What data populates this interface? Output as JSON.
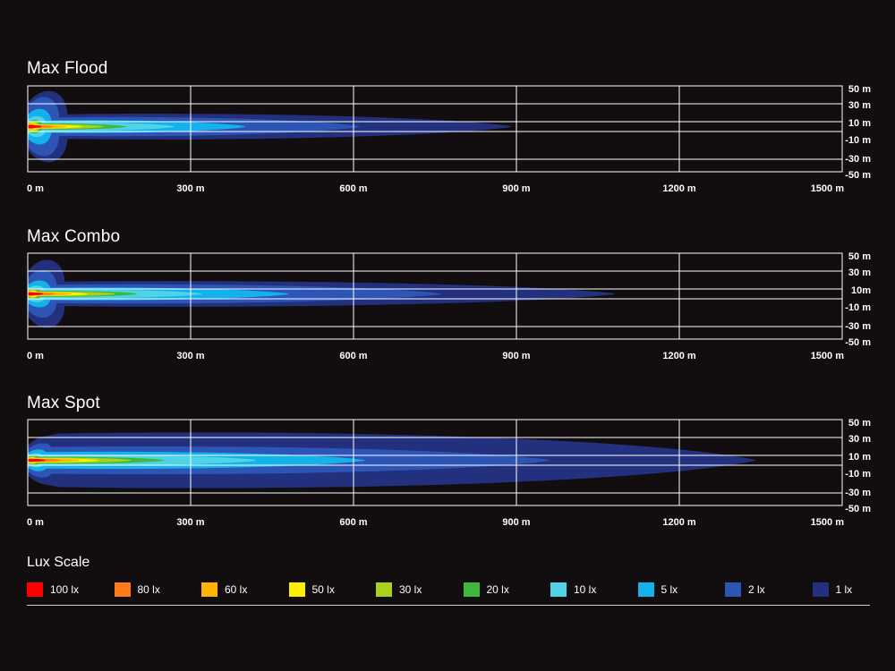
{
  "chart_data": [
    {
      "type": "heatmap",
      "title": "Max Flood",
      "x_ticks": [
        "0 m",
        "300 m",
        "600 m",
        "900 m",
        "1200 m",
        "1500 m"
      ],
      "y_ticks": [
        "50 m",
        "30 m",
        "10 m",
        "-10 m",
        "-30 m",
        "-50 m"
      ],
      "xlim": [
        0,
        1500
      ],
      "ylim": [
        -50,
        50
      ],
      "grid": true,
      "contours": [
        {
          "lux": 1,
          "reach_m": 890,
          "half_width_m": 12,
          "near_half_width_m": 48,
          "near_depth_m": 70
        },
        {
          "lux": 2,
          "reach_m": 610,
          "half_width_m": 9,
          "near_half_width_m": 40,
          "near_depth_m": 55
        },
        {
          "lux": 5,
          "reach_m": 400,
          "half_width_m": 6,
          "near_half_width_m": 24,
          "near_depth_m": 40
        },
        {
          "lux": 10,
          "reach_m": 270,
          "half_width_m": 4,
          "near_half_width_m": 14,
          "near_depth_m": 30
        },
        {
          "lux": 20,
          "reach_m": 180,
          "half_width_m": 2.8,
          "near_half_width_m": 9,
          "near_depth_m": 22
        },
        {
          "lux": 30,
          "reach_m": 140,
          "half_width_m": 2.2,
          "near_half_width_m": 7,
          "near_depth_m": 18
        },
        {
          "lux": 50,
          "reach_m": 100,
          "half_width_m": 1.7,
          "near_half_width_m": 5,
          "near_depth_m": 14
        },
        {
          "lux": 60,
          "reach_m": 70,
          "half_width_m": 1.4,
          "near_half_width_m": 4,
          "near_depth_m": 11
        },
        {
          "lux": 80,
          "reach_m": 45,
          "half_width_m": 1.1,
          "near_half_width_m": 3,
          "near_depth_m": 9
        },
        {
          "lux": 100,
          "reach_m": 25,
          "half_width_m": 0.8,
          "near_half_width_m": 2,
          "near_depth_m": 7
        }
      ]
    },
    {
      "type": "heatmap",
      "title": "Max Combo",
      "x_ticks": [
        "0 m",
        "300 m",
        "600 m",
        "900 m",
        "1200 m",
        "1500 m"
      ],
      "y_ticks": [
        "50 m",
        "30 m",
        "10m",
        "-10 m",
        "-30 m",
        "-50 m"
      ],
      "xlim": [
        0,
        1500
      ],
      "ylim": [
        -50,
        50
      ],
      "grid": true,
      "contours": [
        {
          "lux": 1,
          "reach_m": 1080,
          "half_width_m": 12,
          "near_half_width_m": 46,
          "near_depth_m": 65
        },
        {
          "lux": 2,
          "reach_m": 760,
          "half_width_m": 9,
          "near_half_width_m": 32,
          "near_depth_m": 50
        },
        {
          "lux": 5,
          "reach_m": 480,
          "half_width_m": 6,
          "near_half_width_m": 18,
          "near_depth_m": 38
        },
        {
          "lux": 10,
          "reach_m": 320,
          "half_width_m": 4,
          "near_half_width_m": 11,
          "near_depth_m": 28
        },
        {
          "lux": 20,
          "reach_m": 200,
          "half_width_m": 2.8,
          "near_half_width_m": 7,
          "near_depth_m": 20
        },
        {
          "lux": 30,
          "reach_m": 160,
          "half_width_m": 2.2,
          "near_half_width_m": 5.5,
          "near_depth_m": 16
        },
        {
          "lux": 50,
          "reach_m": 110,
          "half_width_m": 1.7,
          "near_half_width_m": 4.5,
          "near_depth_m": 13
        },
        {
          "lux": 60,
          "reach_m": 80,
          "half_width_m": 1.4,
          "near_half_width_m": 3.5,
          "near_depth_m": 10
        },
        {
          "lux": 80,
          "reach_m": 50,
          "half_width_m": 1.1,
          "near_half_width_m": 2.5,
          "near_depth_m": 8
        },
        {
          "lux": 100,
          "reach_m": 28,
          "half_width_m": 0.8,
          "near_half_width_m": 1.8,
          "near_depth_m": 6
        }
      ]
    },
    {
      "type": "heatmap",
      "title": "Max Spot",
      "x_ticks": [
        "0 m",
        "300 m",
        "600 m",
        "900 m",
        "1200 m",
        "1500 m"
      ],
      "y_ticks": [
        "50 m",
        "30 m",
        "10 m",
        "-10 m",
        "-30 m",
        "-50 m"
      ],
      "xlim": [
        0,
        1500
      ],
      "ylim": [
        -50,
        50
      ],
      "grid": true,
      "contours": [
        {
          "lux": 1,
          "reach_m": 1340,
          "half_width_m": 26,
          "near_half_width_m": 30,
          "near_depth_m": 50
        },
        {
          "lux": 2,
          "reach_m": 960,
          "half_width_m": 13,
          "near_half_width_m": 22,
          "near_depth_m": 40
        },
        {
          "lux": 5,
          "reach_m": 620,
          "half_width_m": 8,
          "near_half_width_m": 14,
          "near_depth_m": 30
        },
        {
          "lux": 10,
          "reach_m": 420,
          "half_width_m": 5,
          "near_half_width_m": 9,
          "near_depth_m": 24
        },
        {
          "lux": 20,
          "reach_m": 250,
          "half_width_m": 3.2,
          "near_half_width_m": 6,
          "near_depth_m": 18
        },
        {
          "lux": 30,
          "reach_m": 190,
          "half_width_m": 2.5,
          "near_half_width_m": 5,
          "near_depth_m": 14
        },
        {
          "lux": 50,
          "reach_m": 130,
          "half_width_m": 1.9,
          "near_half_width_m": 4,
          "near_depth_m": 11
        },
        {
          "lux": 60,
          "reach_m": 95,
          "half_width_m": 1.5,
          "near_half_width_m": 3,
          "near_depth_m": 9
        },
        {
          "lux": 80,
          "reach_m": 60,
          "half_width_m": 1.2,
          "near_half_width_m": 2.2,
          "near_depth_m": 7
        },
        {
          "lux": 100,
          "reach_m": 32,
          "half_width_m": 0.9,
          "near_half_width_m": 1.6,
          "near_depth_m": 5
        }
      ]
    }
  ],
  "legend": {
    "title": "Lux Scale",
    "items": [
      {
        "label": "100 lx",
        "lux": 100,
        "color": "#ff0000"
      },
      {
        "label": "80 lx",
        "lux": 80,
        "color": "#ff7a1a"
      },
      {
        "label": "60 lx",
        "lux": 60,
        "color": "#ffb300"
      },
      {
        "label": "50 lx",
        "lux": 50,
        "color": "#ffee00"
      },
      {
        "label": "30 lx",
        "lux": 30,
        "color": "#a8d21e"
      },
      {
        "label": "20 lx",
        "lux": 20,
        "color": "#3db83a"
      },
      {
        "label": "10 lx",
        "lux": 10,
        "color": "#4fd3e6"
      },
      {
        "label": "5 lx",
        "lux": 5,
        "color": "#14b2ec"
      },
      {
        "label": "2 lx",
        "lux": 2,
        "color": "#2d55b5"
      },
      {
        "label": "1 lx",
        "lux": 1,
        "color": "#22307e"
      }
    ]
  }
}
